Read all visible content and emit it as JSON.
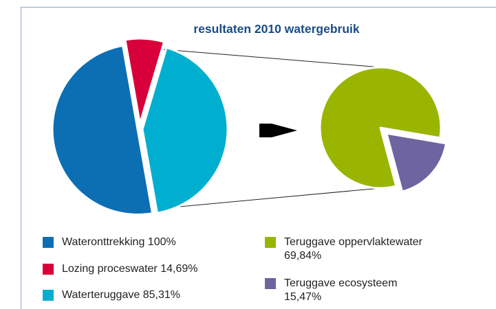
{
  "chart_data": {
    "type": "pie-of-pie",
    "title": "resultaten 2010 watergebruik",
    "pies": [
      {
        "categories": [
          "Wateronttrekking",
          "Lozing proceswater",
          "Waterteruggave"
        ],
        "values": [
          100,
          14.69,
          85.31
        ],
        "value_labels": [
          "100%",
          "14,69%",
          "85,31%"
        ],
        "colors": [
          "#0c6fb4",
          "#d8003a",
          "#00afd0"
        ]
      },
      {
        "categories": [
          "Teruggave oppervlaktewater",
          "Teruggave ecosysteem"
        ],
        "values": [
          69.84,
          15.47
        ],
        "value_labels": [
          "69,84%",
          "15,47%"
        ],
        "colors": [
          "#9ab500",
          "#6e64a0"
        ]
      }
    ]
  }
}
